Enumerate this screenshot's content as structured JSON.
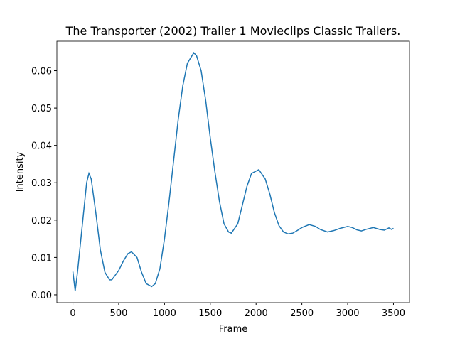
{
  "chart_data": {
    "type": "line",
    "title": "The Transporter (2002) Trailer 1  Movieclips Classic Trailers.",
    "xlabel": "Frame",
    "ylabel": "Intensity",
    "x": [
      0,
      25,
      50,
      100,
      150,
      175,
      200,
      250,
      300,
      350,
      400,
      425,
      500,
      550,
      600,
      640,
      700,
      750,
      800,
      860,
      900,
      950,
      1000,
      1050,
      1100,
      1150,
      1200,
      1250,
      1320,
      1350,
      1400,
      1450,
      1500,
      1550,
      1600,
      1650,
      1700,
      1730,
      1800,
      1850,
      1900,
      1950,
      2030,
      2100,
      2150,
      2200,
      2250,
      2300,
      2350,
      2400,
      2450,
      2500,
      2580,
      2650,
      2700,
      2780,
      2850,
      2920,
      3000,
      3050,
      3100,
      3150,
      3200,
      3280,
      3350,
      3400,
      3450,
      3480,
      3500
    ],
    "series": [
      {
        "name": "Intensity",
        "color": "#1f77b4",
        "values": [
          0.0062,
          0.001,
          0.006,
          0.018,
          0.03,
          0.0325,
          0.031,
          0.022,
          0.012,
          0.006,
          0.004,
          0.004,
          0.0065,
          0.009,
          0.011,
          0.0115,
          0.01,
          0.006,
          0.003,
          0.0022,
          0.003,
          0.007,
          0.015,
          0.025,
          0.036,
          0.047,
          0.056,
          0.062,
          0.0648,
          0.064,
          0.06,
          0.052,
          0.042,
          0.033,
          0.025,
          0.019,
          0.0168,
          0.0165,
          0.019,
          0.024,
          0.029,
          0.0325,
          0.0335,
          0.031,
          0.027,
          0.022,
          0.0185,
          0.0168,
          0.0163,
          0.0165,
          0.0172,
          0.018,
          0.0188,
          0.0183,
          0.0175,
          0.0168,
          0.0172,
          0.0178,
          0.0183,
          0.018,
          0.0174,
          0.0171,
          0.0175,
          0.018,
          0.0175,
          0.0173,
          0.0179,
          0.0175,
          0.0178
        ]
      }
    ],
    "xlim": [
      -175,
      3675
    ],
    "ylim": [
      -0.0021,
      0.0679
    ],
    "xticks": [
      0,
      500,
      1000,
      1500,
      2000,
      2500,
      3000,
      3500
    ],
    "yticks": [
      {
        "value": 0,
        "label": "0.00"
      },
      0.01,
      0.02,
      0.03,
      0.04,
      0.05,
      0.06
    ]
  }
}
